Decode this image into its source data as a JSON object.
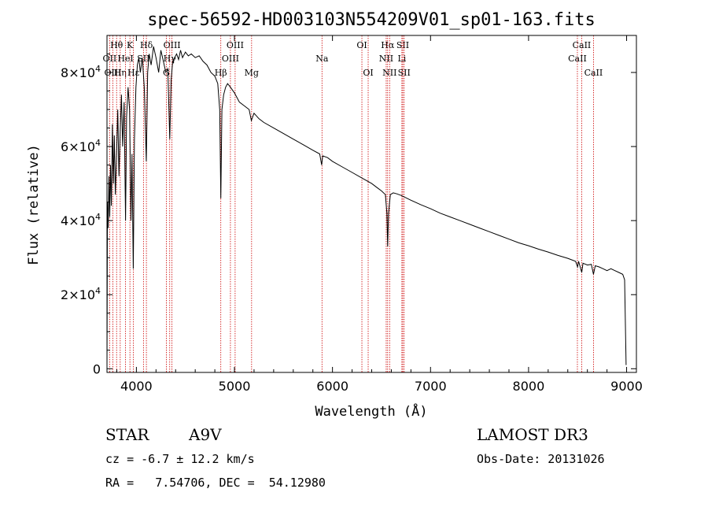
{
  "chart_data": {
    "type": "line",
    "title": "spec-56592-HD003103N554209V01_sp01-163.fits",
    "xlabel": "Wavelength (Å)",
    "ylabel": "Flux (relative)",
    "xlim": [
      3700,
      9100
    ],
    "ylim": [
      -1000,
      90000
    ],
    "x_ticks": [
      4000,
      5000,
      6000,
      7000,
      8000,
      9000
    ],
    "y_ticks": [
      {
        "value": 0,
        "mantissa": "0",
        "exponent": ""
      },
      {
        "value": 20000,
        "mantissa": "2×10",
        "exponent": "4"
      },
      {
        "value": 40000,
        "mantissa": "4×10",
        "exponent": "4"
      },
      {
        "value": 60000,
        "mantissa": "6×10",
        "exponent": "4"
      },
      {
        "value": 80000,
        "mantissa": "8×10",
        "exponent": "4"
      }
    ],
    "series": [
      {
        "name": "flux",
        "color": "#000000",
        "points": [
          [
            3700,
            0
          ],
          [
            3705,
            45000
          ],
          [
            3712,
            38000
          ],
          [
            3720,
            52000
          ],
          [
            3728,
            41000
          ],
          [
            3736,
            55000
          ],
          [
            3745,
            44000
          ],
          [
            3755,
            66000
          ],
          [
            3765,
            50000
          ],
          [
            3775,
            63000
          ],
          [
            3785,
            47000
          ],
          [
            3798,
            58000
          ],
          [
            3810,
            70000
          ],
          [
            3822,
            52000
          ],
          [
            3835,
            64000
          ],
          [
            3848,
            74000
          ],
          [
            3860,
            60000
          ],
          [
            3875,
            72000
          ],
          [
            3889,
            40000
          ],
          [
            3900,
            68000
          ],
          [
            3915,
            76000
          ],
          [
            3930,
            70000
          ],
          [
            3945,
            40000
          ],
          [
            3955,
            58000
          ],
          [
            3968,
            27000
          ],
          [
            3980,
            62000
          ],
          [
            3995,
            76000
          ],
          [
            4010,
            82000
          ],
          [
            4025,
            84000
          ],
          [
            4040,
            80000
          ],
          [
            4060,
            84000
          ],
          [
            4080,
            76000
          ],
          [
            4101,
            56000
          ],
          [
            4115,
            80000
          ],
          [
            4130,
            85000
          ],
          [
            4150,
            82000
          ],
          [
            4175,
            87000
          ],
          [
            4200,
            84000
          ],
          [
            4227,
            80000
          ],
          [
            4250,
            86000
          ],
          [
            4275,
            83000
          ],
          [
            4300,
            80000
          ],
          [
            4320,
            81000
          ],
          [
            4340,
            62000
          ],
          [
            4355,
            78000
          ],
          [
            4370,
            83000
          ],
          [
            4390,
            84000
          ],
          [
            4410,
            85000
          ],
          [
            4430,
            83500
          ],
          [
            4450,
            86000
          ],
          [
            4470,
            84000
          ],
          [
            4500,
            85500
          ],
          [
            4530,
            84500
          ],
          [
            4560,
            85000
          ],
          [
            4600,
            84000
          ],
          [
            4640,
            84500
          ],
          [
            4680,
            83000
          ],
          [
            4720,
            82000
          ],
          [
            4760,
            80000
          ],
          [
            4800,
            79000
          ],
          [
            4830,
            77000
          ],
          [
            4850,
            70000
          ],
          [
            4861,
            46000
          ],
          [
            4872,
            70000
          ],
          [
            4890,
            74000
          ],
          [
            4910,
            76000
          ],
          [
            4930,
            77000
          ],
          [
            4960,
            76000
          ],
          [
            5000,
            74500
          ],
          [
            5050,
            72000
          ],
          [
            5100,
            71000
          ],
          [
            5150,
            70000
          ],
          [
            5172,
            67000
          ],
          [
            5200,
            69000
          ],
          [
            5250,
            67500
          ],
          [
            5300,
            66500
          ],
          [
            5400,
            65000
          ],
          [
            5500,
            63500
          ],
          [
            5600,
            62000
          ],
          [
            5700,
            60500
          ],
          [
            5800,
            59000
          ],
          [
            5870,
            58000
          ],
          [
            5890,
            55000
          ],
          [
            5900,
            57500
          ],
          [
            5950,
            57000
          ],
          [
            6000,
            56000
          ],
          [
            6100,
            54500
          ],
          [
            6200,
            53000
          ],
          [
            6300,
            51500
          ],
          [
            6400,
            50000
          ],
          [
            6450,
            49000
          ],
          [
            6500,
            48000
          ],
          [
            6540,
            47000
          ],
          [
            6555,
            42000
          ],
          [
            6563,
            33000
          ],
          [
            6572,
            42000
          ],
          [
            6590,
            47000
          ],
          [
            6620,
            47500
          ],
          [
            6660,
            47200
          ],
          [
            6700,
            46800
          ],
          [
            6800,
            45500
          ],
          [
            6900,
            44300
          ],
          [
            7000,
            43200
          ],
          [
            7100,
            42000
          ],
          [
            7200,
            41000
          ],
          [
            7300,
            40000
          ],
          [
            7400,
            39000
          ],
          [
            7500,
            38000
          ],
          [
            7600,
            37000
          ],
          [
            7700,
            36000
          ],
          [
            7800,
            35000
          ],
          [
            7900,
            34000
          ],
          [
            8000,
            33200
          ],
          [
            8100,
            32300
          ],
          [
            8200,
            31500
          ],
          [
            8300,
            30600
          ],
          [
            8400,
            29800
          ],
          [
            8480,
            29000
          ],
          [
            8500,
            27500
          ],
          [
            8510,
            29000
          ],
          [
            8542,
            26000
          ],
          [
            8555,
            28500
          ],
          [
            8600,
            28000
          ],
          [
            8640,
            28200
          ],
          [
            8662,
            25500
          ],
          [
            8680,
            27800
          ],
          [
            8720,
            27500
          ],
          [
            8760,
            27000
          ],
          [
            8800,
            26500
          ],
          [
            8840,
            27000
          ],
          [
            8880,
            26500
          ],
          [
            8920,
            26000
          ],
          [
            8960,
            25500
          ],
          [
            8980,
            24000
          ],
          [
            8995,
            1000
          ]
        ]
      }
    ],
    "spectral_lines": [
      {
        "label": "Hθ",
        "wavelength": 3798,
        "row": 1
      },
      {
        "label": "OII",
        "wavelength": 3727,
        "row": 2
      },
      {
        "label": "OIII",
        "wavelength": 3760,
        "row": 3
      },
      {
        "label": "K",
        "wavelength": 3934,
        "row": 1
      },
      {
        "label": "Hη",
        "wavelength": 3835,
        "row": 3
      },
      {
        "label": "HeI",
        "wavelength": 3889,
        "row": 2
      },
      {
        "label": "Hε",
        "wavelength": 3970,
        "row": 3
      },
      {
        "label": "SII",
        "wavelength": 4072,
        "row": 2
      },
      {
        "label": "Hδ",
        "wavelength": 4102,
        "row": 1
      },
      {
        "label": "OIII",
        "wavelength": 4363,
        "row": 1
      },
      {
        "label": "Hγ",
        "wavelength": 4340,
        "row": 2
      },
      {
        "label": "G",
        "wavelength": 4305,
        "row": 3
      },
      {
        "label": "OIII",
        "wavelength": 5007,
        "row": 1
      },
      {
        "label": "OIII",
        "wavelength": 4959,
        "row": 2
      },
      {
        "label": "Hβ",
        "wavelength": 4861,
        "row": 3
      },
      {
        "label": "Mg",
        "wavelength": 5175,
        "row": 3
      },
      {
        "label": "Na",
        "wavelength": 5893,
        "row": 2
      },
      {
        "label": "OI",
        "wavelength": 6300,
        "row": 1
      },
      {
        "label": "OI",
        "wavelength": 6364,
        "row": 3
      },
      {
        "label": "Hα",
        "wavelength": 6563,
        "row": 1
      },
      {
        "label": "NII",
        "wavelength": 6548,
        "row": 2
      },
      {
        "label": "NII",
        "wavelength": 6583,
        "row": 3
      },
      {
        "label": "SII",
        "wavelength": 6717,
        "row": 1
      },
      {
        "label": "Li",
        "wavelength": 6708,
        "row": 2
      },
      {
        "label": "SII",
        "wavelength": 6731,
        "row": 3
      },
      {
        "label": "CaII",
        "wavelength": 8542,
        "row": 1
      },
      {
        "label": "CaII",
        "wavelength": 8498,
        "row": 2
      },
      {
        "label": "CaII",
        "wavelength": 8662,
        "row": 3
      }
    ],
    "colors": {
      "spectrum": "#000000",
      "line_marker": "#cc0000",
      "axes": "#000000"
    }
  },
  "info": {
    "object_type": "STAR",
    "subclass": "A9V",
    "survey": "LAMOST DR3",
    "redshift": "cz = -6.7 ± 12.2 km/s",
    "obs_date": "Obs-Date: 20131026",
    "coords": "RA =   7.54706, DEC =  54.12980"
  }
}
